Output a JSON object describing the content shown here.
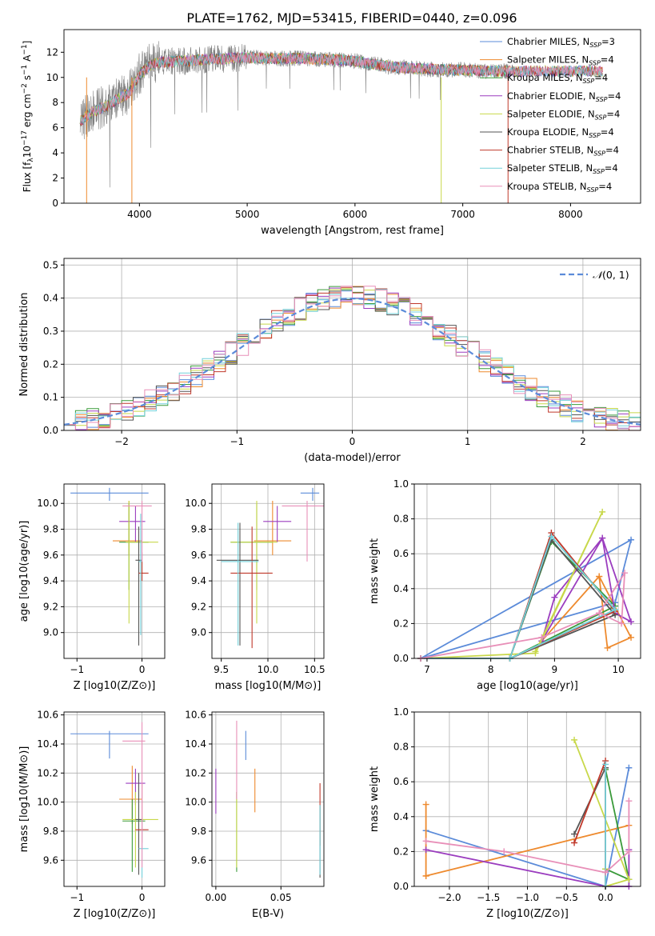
{
  "colors": {
    "series": [
      "#5b8bd9",
      "#ee8a2e",
      "#3a9a3a",
      "#9b3dbf",
      "#c8d84a",
      "#555555",
      "#c0392b",
      "#72d0da",
      "#e88fb8"
    ],
    "data": "#808080",
    "normal": "#5b8bd9",
    "grid": "#b0b0b0"
  },
  "chart_data": [
    {
      "id": "spectrum",
      "type": "line",
      "title": "PLATE=1762, MJD=53415, FIBERID=0440, z=0.096",
      "xlabel": "wavelength [Angstrom, rest frame]",
      "ylabel": "Flux [f_λ 10^-17 erg cm^-2 s^-1 A^-1]",
      "xlim": [
        3300,
        8650
      ],
      "ylim": [
        0,
        13.8
      ],
      "xticks": [
        "4000",
        "5000",
        "6000",
        "7000",
        "8000"
      ],
      "yticks": [
        "0",
        "2",
        "4",
        "6",
        "8",
        "10",
        "12"
      ],
      "grid": false,
      "legend_position": "upper-right",
      "legend": [
        {
          "name": "Chabrier MILES, N",
          "suffix": "=3"
        },
        {
          "name": "Salpeter MILES, N",
          "suffix": "=4"
        },
        {
          "name": "Kroupa MILES, N",
          "suffix": "=4"
        },
        {
          "name": "Chabrier ELODIE, N",
          "suffix": "=4"
        },
        {
          "name": "Salpeter ELODIE, N",
          "suffix": "=4"
        },
        {
          "name": "Kroupa ELODIE, N",
          "suffix": "=4"
        },
        {
          "name": "Chabrier STELIB, N",
          "suffix": "=4"
        },
        {
          "name": "Salpeter STELIB, N",
          "suffix": "=4"
        },
        {
          "name": "Kroupa STELIB, N",
          "suffix": "=4"
        }
      ],
      "legend_subscript": "SSP",
      "continuum": {
        "x": [
          3450,
          3520,
          3600,
          3700,
          3800,
          3900,
          4000,
          4100,
          4200,
          4400,
          4600,
          4800,
          5000,
          5200,
          5500,
          5800,
          6000,
          6200,
          6400,
          6600,
          6800,
          7000,
          7200,
          7400
        ],
        "y": [
          6.5,
          7.0,
          7.4,
          7.7,
          8.3,
          8.7,
          10.2,
          11.0,
          11.2,
          11.3,
          11.4,
          11.5,
          11.6,
          11.5,
          11.5,
          11.4,
          11.3,
          11.0,
          10.8,
          10.7,
          10.6,
          10.6,
          10.5,
          10.5
        ]
      },
      "data_range": [
        3450,
        7420
      ],
      "models_extend_to": 8300
    },
    {
      "id": "residuals",
      "type": "histogram",
      "xlabel": "(data-model)/error",
      "ylabel": "Normed distribution",
      "xlim": [
        -2.5,
        2.5
      ],
      "ylim": [
        0,
        0.52
      ],
      "xticks": [
        "−2",
        "−1",
        "0",
        "1",
        "2"
      ],
      "yticks": [
        "0.0",
        "0.1",
        "0.2",
        "0.3",
        "0.4",
        "0.5"
      ],
      "grid": true,
      "legend": [
        {
          "name": "N(0,1)",
          "style": "dashed"
        }
      ],
      "legend_position": "upper-right",
      "bin_width": 0.1,
      "bin_start": -2.5
    },
    {
      "id": "age-vs-Z",
      "type": "errorbar",
      "xlabel": "Z [log10(Z/Z⊙)]",
      "ylabel": "age  [log10(age/yr)]",
      "xlim": [
        -1.2,
        0.35
      ],
      "ylim": [
        8.8,
        10.15
      ],
      "xticks": [
        "−1",
        "0"
      ],
      "yticks": [
        "9.0",
        "9.2",
        "9.4",
        "9.6",
        "9.8",
        "10.0"
      ],
      "points": [
        {
          "x": -0.5,
          "xe": [
            -1.1,
            0.1
          ],
          "y": 10.08,
          "ye": [
            10.02,
            10.12
          ]
        },
        {
          "x": -0.2,
          "xe": [
            -0.45,
            0.0
          ],
          "y": 9.71,
          "ye": [
            9.6,
            10.02
          ]
        },
        {
          "x": -0.2,
          "xe": [
            -0.35,
            0.1
          ],
          "y": 9.7,
          "ye": [
            9.33,
            10.0
          ]
        },
        {
          "x": -0.1,
          "xe": [
            -0.35,
            0.05
          ],
          "y": 9.86,
          "ye": [
            9.7,
            9.98
          ]
        },
        {
          "x": -0.2,
          "xe": [
            -0.25,
            0.25
          ],
          "y": 9.7,
          "ye": [
            9.07,
            10.02
          ]
        },
        {
          "x": -0.05,
          "xe": [
            -0.1,
            0.0
          ],
          "y": 9.56,
          "ye": [
            8.9,
            9.82
          ]
        },
        {
          "x": 0.0,
          "xe": [
            -0.05,
            0.1
          ],
          "y": 9.46,
          "ye": [
            9.4,
            9.62
          ]
        },
        {
          "x": -0.02,
          "xe": [
            -0.05,
            0.0
          ],
          "y": 9.55,
          "ye": [
            8.98,
            9.92
          ]
        },
        {
          "x": 0.0,
          "xe": [
            -0.3,
            0.15
          ],
          "y": 9.98,
          "ye": [
            9.55,
            10.02
          ]
        }
      ]
    },
    {
      "id": "age-vs-mass",
      "type": "errorbar",
      "xlabel": "mass [log10(M/M⊙)]",
      "ylabel": "",
      "xlim": [
        9.4,
        10.6
      ],
      "ylim": [
        8.8,
        10.15
      ],
      "xticks": [
        "9.5",
        "10.0",
        "10.5"
      ],
      "yticks": [
        "9.0",
        "9.2",
        "9.4",
        "9.6",
        "9.8",
        "10.0"
      ],
      "points": [
        {
          "x": 10.48,
          "xe": [
            10.35,
            10.55
          ],
          "y": 10.08,
          "ye": [
            10.02,
            10.12
          ]
        },
        {
          "x": 10.05,
          "xe": [
            9.85,
            10.25
          ],
          "y": 9.71,
          "ye": [
            9.6,
            10.02
          ]
        },
        {
          "x": 9.88,
          "xe": [
            9.6,
            10.05
          ],
          "y": 9.7,
          "ye": [
            9.33,
            10.0
          ]
        },
        {
          "x": 10.1,
          "xe": [
            9.95,
            10.25
          ],
          "y": 9.86,
          "ye": [
            9.7,
            9.98
          ]
        },
        {
          "x": 9.88,
          "xe": [
            9.6,
            10.1
          ],
          "y": 9.7,
          "ye": [
            9.07,
            10.02
          ]
        },
        {
          "x": 9.7,
          "xe": [
            9.45,
            9.9
          ],
          "y": 9.56,
          "ye": [
            8.9,
            9.85
          ]
        },
        {
          "x": 9.83,
          "xe": [
            9.6,
            10.05
          ],
          "y": 9.46,
          "ye": [
            8.88,
            9.82
          ]
        },
        {
          "x": 9.68,
          "xe": [
            9.5,
            9.9
          ],
          "y": 9.55,
          "ye": [
            8.9,
            9.85
          ]
        },
        {
          "x": 10.42,
          "xe": [
            10.15,
            10.6
          ],
          "y": 9.98,
          "ye": [
            9.55,
            10.02
          ]
        }
      ]
    },
    {
      "id": "weights-vs-age",
      "type": "line",
      "xlabel": "age  [log10(age/yr)]",
      "ylabel": "mass weight",
      "xlim": [
        6.8,
        10.35
      ],
      "ylim": [
        0,
        1.0
      ],
      "xticks": [
        "7",
        "8",
        "9",
        "10"
      ],
      "yticks": [
        "0.0",
        "0.2",
        "0.4",
        "0.6",
        "0.8",
        "1.0"
      ],
      "grid": true,
      "series": [
        {
          "x": [
            6.9,
            10.2,
            9.95,
            6.9
          ],
          "y": [
            0.0,
            0.68,
            0.32,
            0.0
          ]
        },
        {
          "x": [
            9.7,
            9.83,
            10.2,
            9.7,
            8.8
          ],
          "y": [
            0.47,
            0.06,
            0.12,
            0.47,
            0.1
          ]
        },
        {
          "x": [
            6.9,
            8.3,
            8.95,
            9.95,
            8.3
          ],
          "y": [
            0.0,
            0.0,
            0.67,
            0.3,
            0.0
          ]
        },
        {
          "x": [
            8.8,
            9.0,
            9.75,
            9.95,
            10.2,
            9.75,
            8.8
          ],
          "y": [
            0.1,
            0.35,
            0.69,
            0.26,
            0.21,
            0.69,
            0.1
          ]
        },
        {
          "x": [
            6.9,
            8.7,
            9.75,
            8.7
          ],
          "y": [
            0.0,
            0.03,
            0.84,
            0.04
          ]
        },
        {
          "x": [
            6.9,
            8.3,
            8.95,
            9.95,
            8.3
          ],
          "y": [
            0.0,
            0.0,
            0.68,
            0.25,
            0.0
          ]
        },
        {
          "x": [
            6.9,
            8.3,
            8.95,
            9.95,
            8.3
          ],
          "y": [
            0.0,
            0.0,
            0.72,
            0.27,
            0.0
          ]
        },
        {
          "x": [
            6.9,
            8.3,
            8.95,
            9.95,
            8.3
          ],
          "y": [
            0.0,
            0.0,
            0.7,
            0.28,
            0.0
          ]
        },
        {
          "x": [
            6.9,
            8.8,
            9.7,
            10.05,
            10.1,
            9.7,
            8.8
          ],
          "y": [
            0.0,
            0.12,
            0.26,
            0.2,
            0.49,
            0.26,
            0.12
          ]
        }
      ]
    },
    {
      "id": "mass-vs-Z",
      "type": "errorbar",
      "xlabel": "Z [log10(Z/Z⊙)]",
      "ylabel": "mass [log10(M/M⊙)]",
      "xlim": [
        -1.2,
        0.35
      ],
      "ylim": [
        9.42,
        10.62
      ],
      "xticks": [
        "−1",
        "0"
      ],
      "yticks": [
        "9.6",
        "9.8",
        "10.0",
        "10.2",
        "10.4",
        "10.6"
      ],
      "points": [
        {
          "x": -0.5,
          "xe": [
            -1.1,
            0.1
          ],
          "y": 10.47,
          "ye": [
            10.3,
            10.49
          ]
        },
        {
          "x": -0.15,
          "xe": [
            -0.35,
            0.0
          ],
          "y": 10.02,
          "ye": [
            9.85,
            10.25
          ]
        },
        {
          "x": -0.15,
          "xe": [
            -0.3,
            0.05
          ],
          "y": 9.87,
          "ye": [
            9.52,
            10.02
          ]
        },
        {
          "x": -0.1,
          "xe": [
            -0.25,
            0.05
          ],
          "y": 10.13,
          "ye": [
            9.98,
            10.23
          ]
        },
        {
          "x": -0.1,
          "xe": [
            -0.3,
            0.25
          ],
          "y": 9.88,
          "ye": [
            9.55,
            10.07
          ]
        },
        {
          "x": -0.05,
          "xe": [
            -0.1,
            0.0
          ],
          "y": 9.88,
          "ye": [
            9.5,
            10.2
          ]
        },
        {
          "x": 0.0,
          "xe": [
            -0.1,
            0.1
          ],
          "y": 9.81,
          "ye": [
            9.72,
            10.13
          ]
        },
        {
          "x": 0.0,
          "xe": [
            -0.05,
            0.1
          ],
          "y": 9.68,
          "ye": [
            9.48,
            9.9
          ]
        },
        {
          "x": 0.0,
          "xe": [
            -0.3,
            0.05
          ],
          "y": 10.42,
          "ye": [
            9.55,
            10.55
          ]
        }
      ]
    },
    {
      "id": "mass-vs-ebv",
      "type": "errorbar",
      "xlabel": "E(B-V)",
      "ylabel": "",
      "xlim": [
        -0.003,
        0.083
      ],
      "ylim": [
        9.42,
        10.62
      ],
      "xticks": [
        "0.00",
        "0.05"
      ],
      "yticks": [
        "9.6",
        "9.8",
        "10.0",
        "10.2",
        "10.4",
        "10.6"
      ],
      "points": [
        {
          "x": 0.023,
          "y": 10.4,
          "ye": [
            10.29,
            10.49
          ]
        },
        {
          "x": 0.03,
          "y": 10.1,
          "ye": [
            9.93,
            10.23
          ]
        },
        {
          "x": 0.016,
          "y": 9.8,
          "ye": [
            9.52,
            10.07
          ]
        },
        {
          "x": 0.0,
          "y": 10.05,
          "ye": [
            9.92,
            10.23
          ]
        },
        {
          "x": 0.016,
          "y": 9.8,
          "ye": [
            9.55,
            10.07
          ]
        },
        {
          "x": 0.08,
          "y": 9.7,
          "ye": [
            9.48,
            9.98
          ]
        },
        {
          "x": 0.08,
          "y": 9.9,
          "ye": [
            9.7,
            10.13
          ]
        },
        {
          "x": 0.08,
          "y": 9.75,
          "ye": [
            9.5,
            9.98
          ]
        },
        {
          "x": 0.016,
          "y": 10.3,
          "ye": [
            10.02,
            10.56
          ]
        }
      ]
    },
    {
      "id": "weights-vs-Z",
      "type": "line",
      "xlabel": "Z [log10(Z/Z⊙)]",
      "ylabel": "mass weight",
      "xlim": [
        -2.45,
        0.45
      ],
      "ylim": [
        0,
        1.0
      ],
      "xticks": [
        "−2.0",
        "−1.5",
        "−1.0",
        "−0.5",
        "0.0"
      ],
      "yticks": [
        "0.0",
        "0.2",
        "0.4",
        "0.6",
        "0.8",
        "1.0"
      ],
      "grid": true,
      "series": [
        {
          "x": [
            -2.3,
            0.0,
            0.3,
            0.0
          ],
          "y": [
            0.32,
            0.0,
            0.68,
            0.0
          ]
        },
        {
          "x": [
            -2.3,
            -2.3,
            0.3,
            -2.3
          ],
          "y": [
            0.47,
            0.06,
            0.35,
            0.06
          ]
        },
        {
          "x": [
            0.0,
            0.3,
            0.0
          ],
          "y": [
            0.67,
            0.04,
            0.1
          ]
        },
        {
          "x": [
            -2.3,
            0.0,
            0.3,
            0.3
          ],
          "y": [
            0.21,
            0.0,
            0.0,
            0.21
          ]
        },
        {
          "x": [
            -0.4,
            0.3,
            0.0,
            0.0
          ],
          "y": [
            0.84,
            0.04,
            0.0,
            0.1
          ]
        },
        {
          "x": [
            -0.4,
            0.0,
            0.0
          ],
          "y": [
            0.3,
            0.68,
            0.0
          ]
        },
        {
          "x": [
            -0.4,
            0.0,
            0.0
          ],
          "y": [
            0.25,
            0.72,
            0.0
          ]
        },
        {
          "x": [
            0.0,
            0.0
          ],
          "y": [
            0.7,
            0.0
          ]
        },
        {
          "x": [
            -2.3,
            -1.3,
            0.0,
            0.3,
            0.3
          ],
          "y": [
            0.26,
            0.2,
            0.08,
            0.2,
            0.49
          ]
        }
      ]
    }
  ]
}
